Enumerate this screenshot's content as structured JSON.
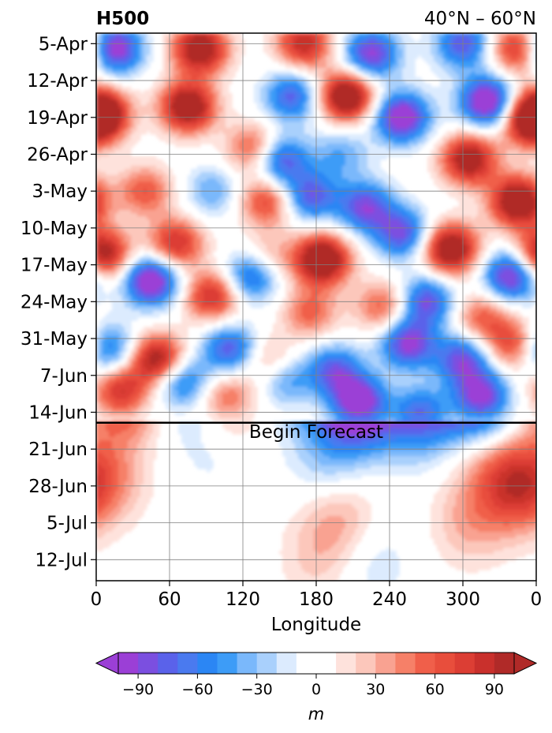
{
  "chart_data": {
    "type": "heatmap",
    "subtype": "hovmoller-filled-contour",
    "title_left": "H500",
    "title_right": "40°N – 60°N",
    "xlabel": "Longitude",
    "x_ticks": [
      "0",
      "60",
      "120",
      "180",
      "240",
      "300",
      "0"
    ],
    "x_tick_values": [
      0,
      60,
      120,
      180,
      240,
      300,
      360
    ],
    "xlim": [
      0,
      360
    ],
    "y_ticks": [
      "5-Apr",
      "12-Apr",
      "19-Apr",
      "26-Apr",
      "3-May",
      "10-May",
      "17-May",
      "24-May",
      "31-May",
      "7-Jun",
      "14-Jun",
      "21-Jun",
      "28-Jun",
      "5-Jul",
      "12-Jul"
    ],
    "y_tick_days": [
      0,
      7,
      14,
      21,
      28,
      35,
      42,
      49,
      56,
      63,
      70,
      77,
      84,
      91,
      98
    ],
    "ylim_days": [
      -2,
      102
    ],
    "y_inverted": true,
    "grid": true,
    "forecast_start_day": 72,
    "annotation": "Begin Forecast",
    "colorbar": {
      "orientation": "horizontal",
      "extend": "both",
      "unit": "m",
      "tick_labels": [
        "−90",
        "−60",
        "−30",
        "0",
        "30",
        "60",
        "90"
      ],
      "tick_values": [
        -90,
        -60,
        -30,
        0,
        30,
        60,
        90
      ],
      "levels": [
        -100,
        -90,
        -80,
        -70,
        -60,
        -50,
        -40,
        -30,
        -20,
        -10,
        10,
        20,
        30,
        40,
        50,
        60,
        70,
        80,
        90,
        100
      ],
      "colors": [
        "#9b3fd6",
        "#7b4fe0",
        "#5a62ea",
        "#4a7aef",
        "#2b86f4",
        "#3d9cf7",
        "#7ab8fb",
        "#a9d0fc",
        "#dcebfe",
        "#ffffff",
        "#fee2dc",
        "#fcc7bb",
        "#f9a291",
        "#f68068",
        "#f05f4a",
        "#e84e3c",
        "#dc3e34",
        "#c9302c",
        "#b02a28"
      ],
      "under_color": "#9b3fd6",
      "over_color": "#b02a28"
    },
    "anomaly_field_blobs_m": [
      {
        "lon": 15,
        "day": 1,
        "value": -110
      },
      {
        "lon": 85,
        "day": 1,
        "value": 115
      },
      {
        "lon": 170,
        "day": 0,
        "value": 90
      },
      {
        "lon": 225,
        "day": 2,
        "value": -95
      },
      {
        "lon": 300,
        "day": 0,
        "value": -80
      },
      {
        "lon": 345,
        "day": 1,
        "value": 85
      },
      {
        "lon": 4,
        "day": 13,
        "value": 110
      },
      {
        "lon": 75,
        "day": 12,
        "value": 120
      },
      {
        "lon": 160,
        "day": 10,
        "value": -75
      },
      {
        "lon": 205,
        "day": 10,
        "value": 125
      },
      {
        "lon": 250,
        "day": 14,
        "value": -110
      },
      {
        "lon": 320,
        "day": 11,
        "value": -115
      },
      {
        "lon": 355,
        "day": 15,
        "value": 85
      },
      {
        "lon": 130,
        "day": 20,
        "value": 70
      },
      {
        "lon": 150,
        "day": 22,
        "value": -90
      },
      {
        "lon": 200,
        "day": 21,
        "value": -40
      },
      {
        "lon": 305,
        "day": 22,
        "value": 110
      },
      {
        "lon": 40,
        "day": 28,
        "value": 60
      },
      {
        "lon": 95,
        "day": 28,
        "value": -40
      },
      {
        "lon": 140,
        "day": 30,
        "value": 70
      },
      {
        "lon": 175,
        "day": 29,
        "value": -80
      },
      {
        "lon": 220,
        "day": 31,
        "value": -85
      },
      {
        "lon": 345,
        "day": 30,
        "value": 125
      },
      {
        "lon": 5,
        "day": 40,
        "value": 110
      },
      {
        "lon": 65,
        "day": 38,
        "value": 85
      },
      {
        "lon": 140,
        "day": 41,
        "value": 45
      },
      {
        "lon": 185,
        "day": 41,
        "value": 130
      },
      {
        "lon": 250,
        "day": 36,
        "value": -85
      },
      {
        "lon": 290,
        "day": 39,
        "value": 120
      },
      {
        "lon": 340,
        "day": 44,
        "value": -105
      },
      {
        "lon": 45,
        "day": 45,
        "value": -115
      },
      {
        "lon": 95,
        "day": 48,
        "value": 85
      },
      {
        "lon": 128,
        "day": 44,
        "value": -85
      },
      {
        "lon": 175,
        "day": 51,
        "value": 55
      },
      {
        "lon": 235,
        "day": 50,
        "value": 60
      },
      {
        "lon": 270,
        "day": 49,
        "value": -85
      },
      {
        "lon": 315,
        "day": 52,
        "value": 55
      },
      {
        "lon": 10,
        "day": 58,
        "value": -70
      },
      {
        "lon": 50,
        "day": 60,
        "value": 110
      },
      {
        "lon": 110,
        "day": 58,
        "value": -80
      },
      {
        "lon": 140,
        "day": 60,
        "value": 40
      },
      {
        "lon": 195,
        "day": 62,
        "value": -75
      },
      {
        "lon": 255,
        "day": 57,
        "value": -95
      },
      {
        "lon": 300,
        "day": 60,
        "value": -85
      },
      {
        "lon": 340,
        "day": 57,
        "value": 70
      },
      {
        "lon": 20,
        "day": 66,
        "value": 80
      },
      {
        "lon": 70,
        "day": 64,
        "value": -70
      },
      {
        "lon": 108,
        "day": 67,
        "value": 50
      },
      {
        "lon": 155,
        "day": 64,
        "value": -45
      },
      {
        "lon": 215,
        "day": 68,
        "value": -110
      },
      {
        "lon": 265,
        "day": 70,
        "value": -70
      },
      {
        "lon": 315,
        "day": 67,
        "value": -95
      },
      {
        "lon": 15,
        "day": 82,
        "value": 25
      },
      {
        "lon": 95,
        "day": 77,
        "value": -15
      },
      {
        "lon": 190,
        "day": 79,
        "value": -30
      },
      {
        "lon": 200,
        "day": 90,
        "value": 35
      },
      {
        "lon": 320,
        "day": 79,
        "value": 22
      },
      {
        "lon": 345,
        "day": 84,
        "value": 75
      },
      {
        "lon": 305,
        "day": 91,
        "value": 30
      },
      {
        "lon": 180,
        "day": 98,
        "value": 20
      },
      {
        "lon": 225,
        "day": 98,
        "value": -20
      }
    ]
  }
}
